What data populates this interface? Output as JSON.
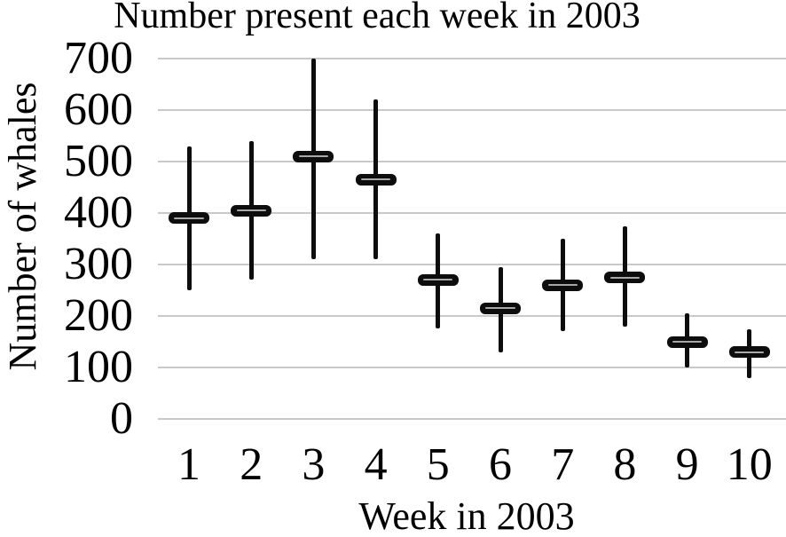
{
  "chart_data": {
    "type": "hilo-range",
    "title": "Number present each week in 2003",
    "xlabel": "Week in 2003",
    "ylabel": "Number of whales",
    "categories": [
      "1",
      "2",
      "3",
      "4",
      "5",
      "6",
      "7",
      "8",
      "9",
      "10"
    ],
    "series": [
      {
        "name": "low",
        "values": [
          250,
          270,
          310,
          310,
          175,
          130,
          170,
          180,
          100,
          80
        ]
      },
      {
        "name": "mid",
        "values": [
          390,
          405,
          510,
          465,
          270,
          215,
          260,
          275,
          150,
          130
        ]
      },
      {
        "name": "high",
        "values": [
          530,
          540,
          700,
          620,
          360,
          295,
          350,
          375,
          205,
          175
        ]
      }
    ],
    "ylim": [
      0,
      700
    ],
    "yticks": [
      0,
      100,
      200,
      300,
      400,
      500,
      600,
      700
    ],
    "grid": true,
    "legend": "none"
  },
  "colors": {
    "text": "#000000",
    "gridline": "#c9c9c9",
    "series": "#0d0d0d",
    "background": "#ffffff"
  }
}
